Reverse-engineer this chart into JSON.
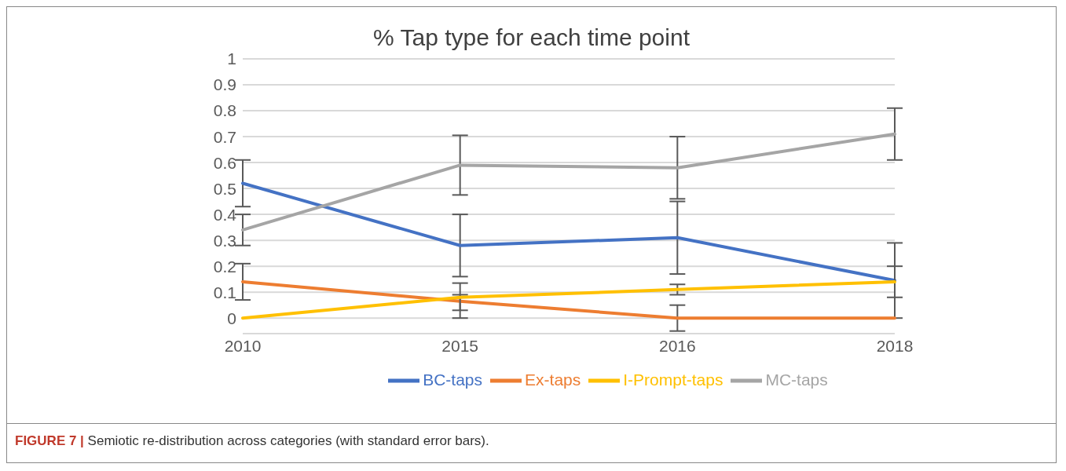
{
  "chart_data": {
    "type": "line",
    "title": "% Tap type  for each time point",
    "categories": [
      "2010",
      "2015",
      "2016",
      "2018"
    ],
    "series": [
      {
        "name": "BC-taps",
        "color": "#4472c4",
        "values": [
          0.52,
          0.28,
          0.31,
          0.145
        ],
        "errors": [
          [
            0.43,
            0.61
          ],
          [
            0.16,
            0.4
          ],
          [
            0.17,
            0.45
          ],
          [
            0,
            0.29
          ]
        ]
      },
      {
        "name": "Ex-taps",
        "color": "#ed7d31",
        "values": [
          0.14,
          0.065,
          0,
          0
        ],
        "errors": [
          [
            0.07,
            0.21
          ],
          [
            0,
            0.135
          ],
          [
            -0.05,
            0.05
          ],
          null
        ]
      },
      {
        "name": "MC-taps",
        "color": "#a5a5a5",
        "values": [
          0.34,
          0.59,
          0.58,
          0.71
        ],
        "errors": [
          [
            0.28,
            0.4
          ],
          [
            0.475,
            0.705
          ],
          [
            0.46,
            0.7
          ],
          [
            0.61,
            0.81
          ]
        ]
      },
      {
        "name": "I-Prompt-taps",
        "color": "#ffc000",
        "values": [
          0,
          0.08,
          0.11,
          0.14
        ],
        "errors": [
          null,
          [
            0.03,
            0.09
          ],
          [
            0.09,
            0.13
          ],
          [
            0.08,
            0.2
          ]
        ]
      }
    ],
    "ylim": [
      -0.06,
      1
    ],
    "yticks": [
      0,
      0.1,
      0.2,
      0.3,
      0.4,
      0.5,
      0.6,
      0.7,
      0.8,
      0.9,
      1
    ],
    "grid": "y",
    "legend": "bottom",
    "marker": "none",
    "line_style": "solid",
    "annotations": [
      "FIGURE 7 | Semiotic re-distribution across categories (with standard error bars)."
    ]
  }
}
